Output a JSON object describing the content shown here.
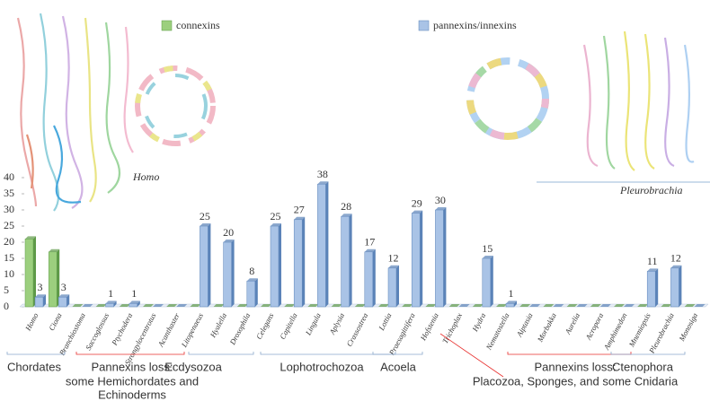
{
  "chart_data": {
    "type": "bar3d",
    "legend": [
      "connexins",
      "pannexins/innexins"
    ],
    "categories": [
      "Homo",
      "Ciona",
      "Branchiostoma",
      "Saccoglossus",
      "Ptychodera",
      "Strongylocentrotus",
      "Acanthaster",
      "Litopenaeus",
      "Hyalella",
      "Drosophila",
      "Celegans",
      "Capitella",
      "Lingula",
      "Aplysia",
      "Crassostrea",
      "Lottia",
      "Praesagittifera",
      "Hofstenia",
      "Trichoplax",
      "Hydra",
      "Nematostella",
      "Aiptasia",
      "Morbakka",
      "Aurelia",
      "Acropora",
      "Amphimedon",
      "Mnemiopsis",
      "Pleurobrachia",
      "Monosiga"
    ],
    "series": [
      {
        "name": "connexins",
        "color": "#9ccf7e",
        "side": "#5e9a48",
        "label_zero": false,
        "show_labels": false,
        "values": [
          21,
          17,
          0,
          0,
          0,
          0,
          0,
          0,
          0,
          0,
          0,
          0,
          0,
          0,
          0,
          0,
          0,
          0,
          0,
          0,
          0,
          0,
          0,
          0,
          0,
          0,
          0,
          0,
          0
        ]
      },
      {
        "name": "pannexins/innexins",
        "color": "#a9c3e6",
        "side": "#5b83b8",
        "label_zero": false,
        "show_labels": true,
        "values": [
          3,
          3,
          0,
          1,
          1,
          0,
          0,
          25,
          20,
          8,
          25,
          27,
          38,
          28,
          17,
          12,
          29,
          30,
          0,
          15,
          1,
          0,
          0,
          0,
          0,
          0,
          11,
          12,
          0
        ],
        "label_colors": [
          "#666",
          "#666",
          "#666",
          "#666",
          "#666",
          "#666",
          "#666",
          "#666",
          "#666",
          "#666",
          "#666",
          "#666",
          "#e8312f",
          "#666",
          "#666",
          "#666",
          "#666",
          "#e8312f",
          "#666",
          "#666",
          "#666",
          "#666",
          "#666",
          "#666",
          "#666",
          "#666",
          "#666",
          "#666",
          "#666"
        ]
      }
    ],
    "ylim": [
      0,
      40
    ],
    "yticks": [
      0,
      5,
      10,
      15,
      20,
      25,
      30,
      35,
      40
    ],
    "groups": [
      {
        "label": "Chordates",
        "color": "#222"
      },
      {
        "label": "Pannexins loss:",
        "sublabel": [
          "some Hemichordates and",
          "Echinoderms"
        ],
        "color": "#e8312f"
      },
      {
        "label": "Ecdysozoa",
        "color": "#222"
      },
      {
        "label": "Lophotrochozoa",
        "color": "#222"
      },
      {
        "label": "Acoela",
        "color": "#222"
      },
      {
        "label": "Pannexins loss:",
        "sublabel": [
          "Placozoa, Sponges, and some Cnidaria"
        ],
        "color": "#e8312f"
      },
      {
        "label": "Ctenophora",
        "color": "#222"
      }
    ],
    "species_labels": [
      "Homo",
      "Pleurobrachia"
    ]
  }
}
